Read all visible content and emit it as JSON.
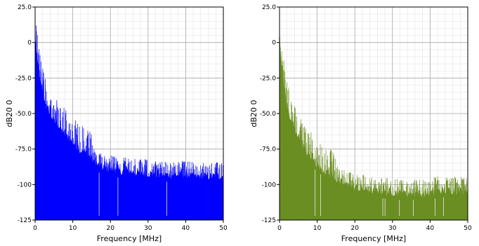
{
  "chart_data": [
    {
      "type": "area",
      "xlabel": "Frequency [MHz]",
      "ylabel": "dB20 0",
      "xlim": [
        0,
        50
      ],
      "ylim": [
        -125,
        25
      ],
      "x_ticks": [
        "0",
        "10",
        "20",
        "30",
        "40",
        "50"
      ],
      "y_ticks": [
        "25.0",
        "0",
        "-25.0",
        "-50.0",
        "-75.0",
        "-100",
        "-125"
      ],
      "grid": true,
      "color": "#0000ff",
      "series": [
        {
          "x": [
            0,
            0.5,
            1,
            1.5,
            2,
            3,
            4,
            5,
            6,
            8,
            10,
            12,
            14,
            15,
            16,
            18,
            20,
            22,
            24,
            26,
            28,
            30,
            32,
            34,
            36,
            38,
            40,
            42,
            44,
            46,
            48,
            50
          ],
          "values": [
            5,
            -10,
            -20,
            -30,
            -35,
            -45,
            -50,
            -55,
            -58,
            -65,
            -70,
            -76,
            -79,
            -81,
            -85,
            -88,
            -89,
            -90,
            -91,
            -91,
            -92,
            -92,
            -93,
            -93,
            -93,
            -93,
            -93,
            -94,
            -94,
            -94,
            -94,
            -94
          ]
        }
      ]
    },
    {
      "type": "area",
      "xlabel": "Frequency [MHz]",
      "ylabel": "dB20 0",
      "xlim": [
        0,
        50
      ],
      "ylim": [
        -125,
        25
      ],
      "x_ticks": [
        "0",
        "10",
        "20",
        "30",
        "40",
        "50"
      ],
      "y_ticks": [
        "25.0",
        "0",
        "-25.0",
        "-50.0",
        "-75.0",
        "-100",
        "-125"
      ],
      "grid": true,
      "color": "#6b8e23",
      "series": [
        {
          "x": [
            0,
            0.5,
            1,
            1.5,
            2,
            3,
            4,
            5,
            6,
            8,
            10,
            12,
            14,
            16,
            18,
            20,
            22,
            24,
            26,
            28,
            30,
            32,
            34,
            36,
            38,
            40,
            42,
            44,
            46,
            48,
            50
          ],
          "values": [
            5,
            -15,
            -25,
            -35,
            -45,
            -55,
            -60,
            -66,
            -72,
            -80,
            -86,
            -90,
            -94,
            -98,
            -100,
            -102,
            -103,
            -104,
            -104,
            -105,
            -105,
            -106,
            -106,
            -106,
            -106,
            -106,
            -104,
            -104,
            -104,
            -104,
            -104
          ]
        }
      ]
    }
  ]
}
